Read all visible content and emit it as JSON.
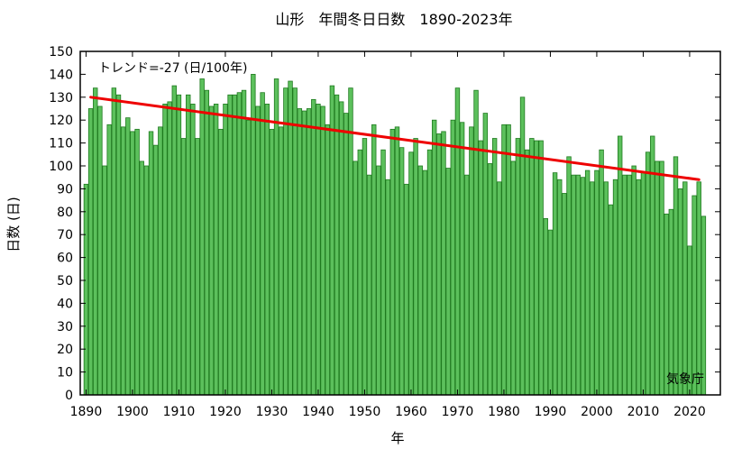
{
  "chart_data": {
    "type": "bar",
    "title": "山形　年間冬日日数　1890-2023年",
    "xlabel": "年",
    "ylabel": "日数 (日)",
    "trend_text": "トレンド=-27 (日/100年)",
    "source": "気象庁",
    "ylim": [
      0,
      150
    ],
    "yticks": [
      0,
      10,
      20,
      30,
      40,
      50,
      60,
      70,
      80,
      90,
      100,
      110,
      120,
      130,
      140,
      150
    ],
    "xticks": [
      1890,
      1900,
      1910,
      1920,
      1930,
      1940,
      1950,
      1960,
      1970,
      1980,
      1990,
      2000,
      2010,
      2020
    ],
    "x_start": 1890,
    "x_end": 2023,
    "grid": false,
    "bar_color": "#5cc05c",
    "bar_edge_color": "#1f7a1f",
    "trend_color": "#ee0000",
    "trend_line": {
      "x": [
        1891,
        2022
      ],
      "y": [
        130,
        94
      ]
    },
    "values": [
      92,
      125,
      134,
      126,
      100,
      118,
      134,
      131,
      117,
      121,
      115,
      116,
      102,
      100,
      115,
      109,
      117,
      127,
      128,
      135,
      131,
      112,
      131,
      127,
      112,
      138,
      133,
      126,
      127,
      116,
      127,
      131,
      131,
      132,
      133,
      120,
      140,
      126,
      132,
      127,
      116,
      138,
      117,
      134,
      137,
      134,
      125,
      124,
      125,
      129,
      127,
      126,
      118,
      135,
      131,
      128,
      123,
      134,
      102,
      107,
      112,
      96,
      118,
      100,
      107,
      94,
      116,
      117,
      108,
      92,
      106,
      112,
      100,
      98,
      107,
      120,
      114,
      115,
      99,
      120,
      134,
      119,
      96,
      117,
      133,
      111,
      123,
      101,
      112,
      93,
      118,
      118,
      102,
      112,
      130,
      107,
      112,
      111,
      111,
      77,
      72,
      97,
      94,
      88,
      104,
      96,
      96,
      95,
      98,
      93,
      98,
      107,
      93,
      83,
      94,
      113,
      96,
      96,
      100,
      94,
      97,
      106,
      113,
      102,
      102,
      79,
      81,
      104,
      90,
      93,
      65,
      87,
      93,
      78
    ]
  }
}
